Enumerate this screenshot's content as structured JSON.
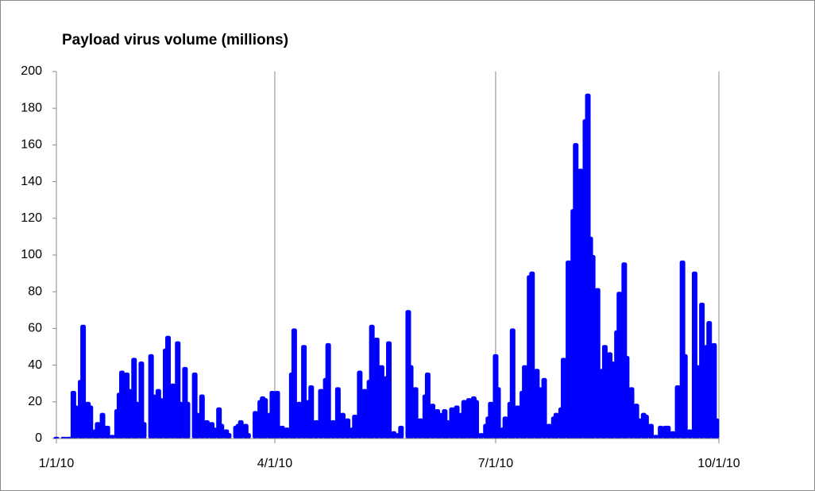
{
  "chart_data": {
    "type": "bar",
    "title": "Payload virus volume (millions)",
    "color": "#0000ff",
    "x": [
      "1/1/10",
      "1/4/10",
      "1/6/10",
      "1/8/10",
      "1/9/10",
      "1/11/10",
      "1/12/10",
      "1/14/10",
      "1/15/10",
      "1/17/10",
      "1/18/10",
      "1/20/10",
      "1/22/10",
      "1/24/10",
      "1/26/10",
      "1/27/10",
      "1/28/10",
      "1/30/10",
      "1/31/10",
      "2/2/10",
      "2/3/10",
      "2/5/10",
      "2/6/10",
      "2/9/10",
      "2/10/10",
      "2/12/10",
      "2/13/10",
      "2/15/10",
      "2/16/10",
      "2/18/10",
      "2/20/10",
      "2/21/10",
      "2/23/10",
      "2/24/10",
      "2/27/10",
      "2/28/10",
      "3/2/10",
      "3/4/10",
      "3/6/10",
      "3/7/10",
      "3/9/10",
      "3/10/10",
      "3/12/10",
      "3/13/10",
      "3/16/10",
      "3/17/10",
      "3/18/10",
      "3/20/10",
      "3/21/10",
      "3/24/10",
      "3/26/10",
      "3/27/10",
      "3/28/10",
      "3/30/10",
      "3/31/10",
      "4/2/10",
      "4/4/10",
      "4/6/10",
      "4/8/10",
      "4/9/10",
      "4/11/10",
      "4/13/10",
      "4/15/10",
      "4/16/10",
      "4/18/10",
      "4/20/10",
      "4/22/10",
      "4/23/10",
      "4/25/10",
      "4/27/10",
      "4/29/10",
      "5/1/10",
      "5/3/10",
      "5/4/10",
      "5/6/10",
      "5/8/10",
      "5/10/10",
      "5/11/10",
      "5/13/10",
      "5/15/10",
      "5/17/10",
      "5/18/10",
      "5/20/10",
      "5/22/10",
      "5/23/10",
      "5/26/10",
      "5/27/10",
      "5/29/10",
      "5/31/10",
      "6/2/10",
      "6/3/10",
      "6/5/10",
      "6/7/10",
      "6/8/10",
      "6/10/10",
      "6/11/10",
      "6/13/10",
      "6/15/10",
      "6/17/10",
      "6/18/10",
      "6/20/10",
      "6/22/10",
      "6/23/10",
      "6/25/10",
      "6/27/10",
      "6/28/10",
      "6/29/10",
      "7/1/10",
      "7/2/10",
      "7/4/10",
      "7/5/10",
      "7/7/10",
      "7/8/10",
      "7/10/10",
      "7/12/10",
      "7/13/10",
      "7/15/10",
      "7/16/10",
      "7/18/10",
      "7/19/10",
      "7/21/10",
      "7/23/10",
      "7/25/10",
      "7/26/10",
      "7/28/10",
      "7/29/10",
      "7/31/10",
      "8/1/10",
      "8/2/10",
      "8/3/10",
      "8/4/10",
      "8/5/10",
      "8/7/10",
      "8/8/10",
      "8/9/10",
      "8/10/10",
      "8/12/10",
      "8/14/10",
      "8/15/10",
      "8/17/10",
      "8/18/10",
      "8/20/10",
      "8/21/10",
      "8/23/10",
      "8/24/10",
      "8/26/10",
      "8/28/10",
      "8/29/10",
      "8/31/10",
      "9/1/10",
      "9/3/10",
      "9/5/10",
      "9/7/10",
      "9/9/10",
      "9/10/10",
      "9/12/10",
      "9/14/10",
      "9/16/10",
      "9/17/10",
      "9/19/10",
      "9/21/10",
      "9/22/10",
      "9/24/10",
      "9/26/10",
      "9/27/10",
      "9/29/10",
      "9/30/10"
    ],
    "values": [
      1,
      1,
      1,
      26,
      18,
      32,
      62,
      20,
      18,
      5,
      9,
      14,
      7,
      2,
      16,
      25,
      37,
      36,
      27,
      44,
      20,
      42,
      9,
      46,
      24,
      27,
      22,
      49,
      56,
      30,
      53,
      20,
      39,
      20,
      36,
      14,
      24,
      10,
      9,
      6,
      17,
      8,
      5,
      3,
      7,
      8,
      10,
      8,
      3,
      15,
      21,
      23,
      22,
      14,
      26,
      26,
      7,
      6,
      36,
      60,
      20,
      51,
      21,
      29,
      10,
      27,
      33,
      52,
      10,
      28,
      14,
      11,
      6,
      13,
      37,
      27,
      32,
      62,
      55,
      40,
      34,
      53,
      4,
      3,
      7,
      70,
      40,
      28,
      11,
      24,
      36,
      19,
      16,
      14,
      16,
      10,
      17,
      18,
      14,
      21,
      22,
      23,
      21,
      3,
      8,
      12,
      20,
      46,
      28,
      6,
      12,
      20,
      60,
      18,
      26,
      40,
      89,
      91,
      38,
      28,
      33,
      8,
      12,
      14,
      17,
      44,
      97,
      45,
      125,
      161,
      65,
      147,
      174,
      188,
      110,
      100,
      82,
      38,
      51,
      47,
      42,
      59,
      80,
      96,
      45,
      28,
      19,
      11,
      14,
      13,
      8,
      2,
      7,
      7,
      7,
      4,
      29,
      97,
      46,
      5,
      91,
      40,
      74,
      51,
      64,
      52,
      11
    ],
    "xlim": [
      "1/1/10",
      "10/1/10"
    ],
    "xticks": [
      "1/1/10",
      "4/1/10",
      "7/1/10",
      "10/1/10"
    ],
    "ylim": [
      0,
      200
    ],
    "yticks": [
      0,
      20,
      40,
      60,
      80,
      100,
      120,
      140,
      160,
      180,
      200
    ],
    "xgrid": true
  }
}
